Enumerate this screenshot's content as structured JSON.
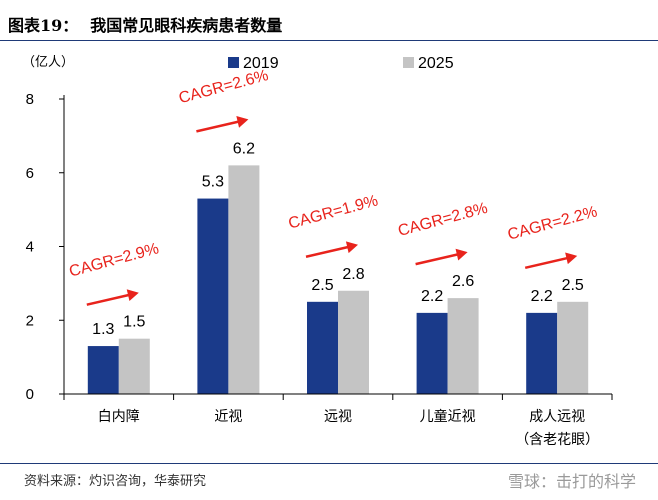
{
  "header": {
    "figure_label": "图表19：",
    "title": "我国常见眼科疾病患者数量"
  },
  "footer": {
    "source": "资料来源：灼识咨询，华泰研究",
    "watermark": "雪球：击打的科学"
  },
  "colors": {
    "series_2019": "#1a3a8a",
    "series_2025": "#c4c4c4",
    "cagr": "#e8231c",
    "rule": "#1f3a78"
  },
  "chart_data": {
    "type": "bar",
    "title": "我国常见眼科疾病患者数量",
    "ylabel": "（亿人）",
    "xlabel": "",
    "ylim": [
      0,
      8
    ],
    "yticks": [
      0,
      2,
      4,
      6,
      8
    ],
    "categories": [
      "白内障",
      "近视",
      "远视",
      "儿童近视",
      [
        "成人远视",
        "（含老花眼）"
      ]
    ],
    "series": [
      {
        "name": "2019",
        "values": [
          1.3,
          5.3,
          2.5,
          2.2,
          2.2
        ]
      },
      {
        "name": "2025",
        "values": [
          1.5,
          6.2,
          2.8,
          2.6,
          2.5
        ]
      }
    ],
    "value_labels": [
      [
        "1.3",
        "5.3",
        "2.5",
        "2.2",
        "2.2"
      ],
      [
        "1.5",
        "6.2",
        "2.8",
        "2.6",
        "2.5"
      ]
    ],
    "annotations": [
      "CAGR=2.9%",
      "CAGR=2.6%",
      "CAGR=1.9%",
      "CAGR=2.8%",
      "CAGR=2.2%"
    ],
    "legend": {
      "position": "top",
      "entries": [
        "2019",
        "2025"
      ]
    }
  }
}
